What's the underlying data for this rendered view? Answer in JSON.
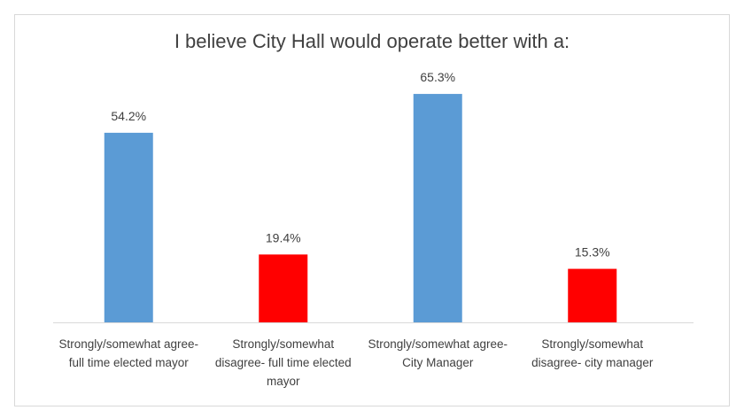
{
  "chart_data": {
    "type": "bar",
    "title": "I believe City Hall would operate better with a:",
    "categories": [
      "Strongly/somewhat agree- full time elected mayor",
      "Strongly/somewhat disagree- full time elected mayor",
      "Strongly/somewhat agree- City Manager",
      "Strongly/somewhat disagree- city manager"
    ],
    "values": [
      54.2,
      19.4,
      65.3,
      15.3
    ],
    "data_labels": [
      "54.2%",
      "19.4%",
      "65.3%",
      "15.3%"
    ],
    "colors": [
      "#5b9bd5",
      "#ff0000",
      "#5b9bd5",
      "#ff0000"
    ],
    "xlabel": "",
    "ylabel": "",
    "grid": false,
    "legend": "none"
  }
}
